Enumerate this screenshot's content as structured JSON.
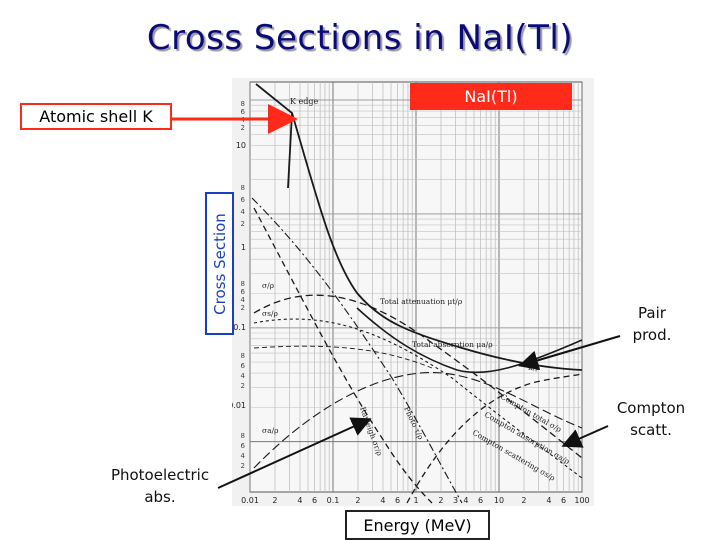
{
  "title": "Cross Sections in NaI(Tl)",
  "labels": {
    "material": "NaI(Tl)",
    "atomic_shell": "Atomic shell K",
    "y_axis": "Cross Section",
    "x_axis": "Energy (MeV)",
    "pair": [
      "Pair",
      "prod."
    ],
    "compton": [
      "Compton",
      "scatt."
    ],
    "photo": [
      "Photoelectric",
      "abs."
    ]
  },
  "plot": {
    "k_edge": "K edge",
    "curves": {
      "total_attenuation": "Total attenuation μt/ρ",
      "total_absorption": "Total absorption μa/ρ",
      "compton_total": "Compton total σ/ρ",
      "compton_absorption": "Compton absorption σa/ρ",
      "compton_scattering": "Compton scattering σs/ρ",
      "rayleigh": "Rayleigh σr/ρ",
      "photo": "Photo τ/ρ",
      "pair": "κ/ρ"
    },
    "curve_side_labels": [
      "σ/ρ",
      "σs/ρ",
      "σa/ρ"
    ],
    "x_ticks": [
      "0.01",
      "2",
      "4",
      "6",
      "0.1",
      "2",
      "4",
      "6",
      "1",
      "2",
      "3",
      "4",
      "6",
      "10",
      "2",
      "4",
      "6",
      "100"
    ],
    "y_decade_labels": [
      "10",
      "1",
      "0.1",
      "0.01"
    ],
    "y_minor_labels": [
      "2",
      "4",
      "6",
      "8"
    ]
  },
  "colors": {
    "title": "#0a0a7a",
    "accent_red": "#ff2a1a",
    "axis_blue": "#1a3fbf"
  }
}
